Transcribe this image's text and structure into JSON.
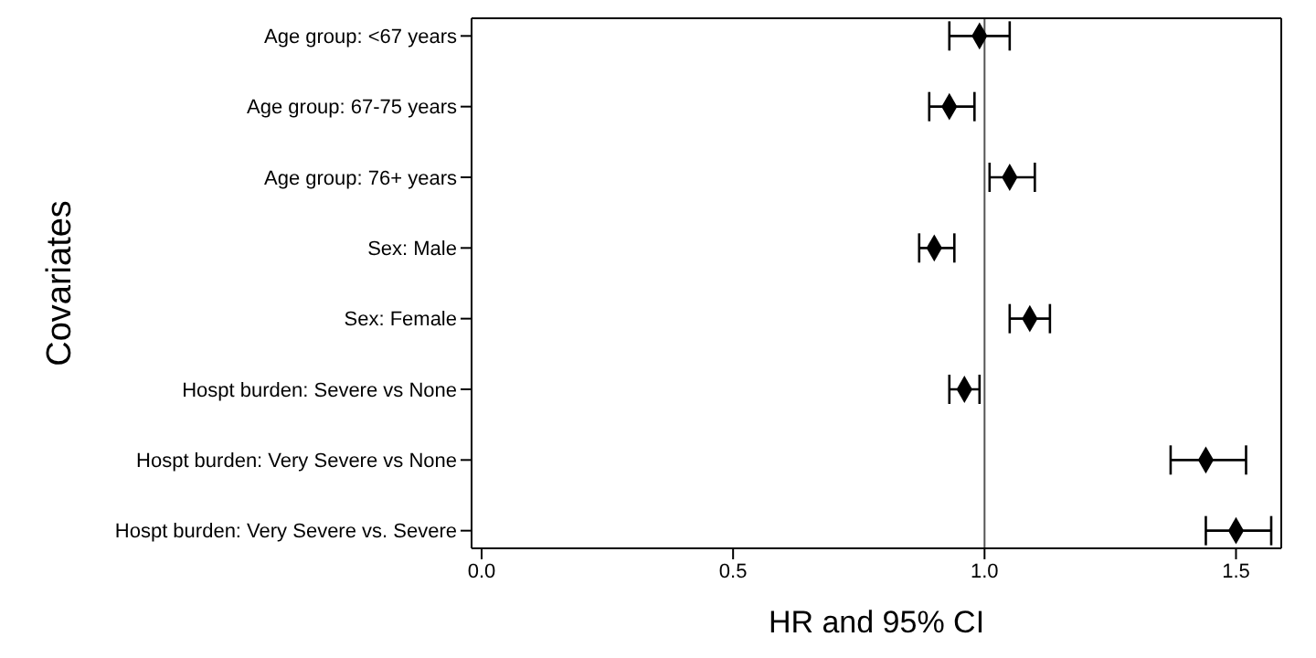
{
  "chart_data": {
    "type": "scatter",
    "xlabel": "HR and 95% CI",
    "ylabel": "Covariates",
    "categories": [
      "Age group: <67 years",
      "Age group: 67-75 years",
      "Age group: 76+ years",
      "Sex: Male",
      "Sex: Female",
      "Hospt burden: Severe vs None",
      "Hospt burden: Very Severe vs None",
      "Hospt burden: Very Severe vs. Severe"
    ],
    "orientation": "horizontal",
    "values": [
      0.99,
      0.93,
      1.05,
      0.9,
      1.09,
      0.96,
      1.44,
      1.5
    ],
    "errors": [
      [
        0.93,
        1.05
      ],
      [
        0.89,
        0.98
      ],
      [
        1.01,
        1.1
      ],
      [
        0.87,
        0.94
      ],
      [
        1.05,
        1.13
      ],
      [
        0.93,
        0.99
      ],
      [
        1.37,
        1.52
      ],
      [
        1.44,
        1.57
      ]
    ],
    "color": "#000000",
    "marker": "diamond",
    "xlim": [
      -0.02,
      1.59
    ],
    "xticks": [
      {
        "value": 0,
        "label": "0.0"
      },
      0.5,
      {
        "value": 1,
        "label": "1.0"
      },
      1.5
    ],
    "ref_lines": [
      {
        "axis": "x",
        "value": 1,
        "color": "#555555"
      }
    ]
  }
}
